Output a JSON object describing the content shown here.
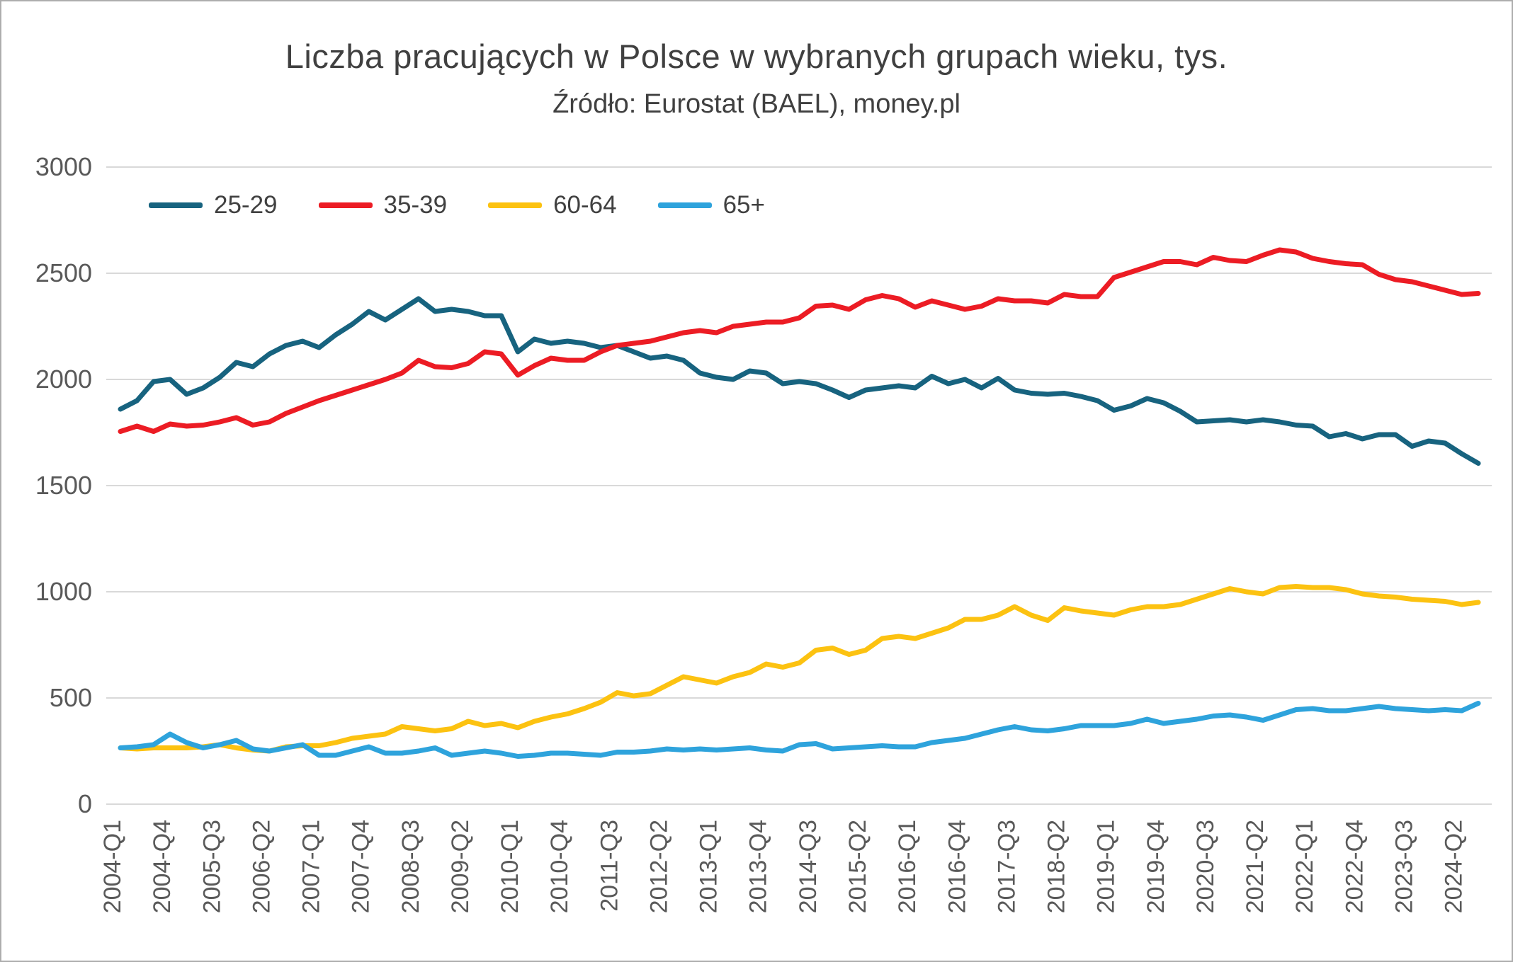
{
  "title": "Liczba pracujących w Polsce w wybranych grupach wieku, tys.",
  "subtitle": "Źródło: Eurostat (BAEL), money.pl",
  "chart_data": {
    "type": "line",
    "grid": "horizontal",
    "legend_position": "top-left-inside",
    "ylim": [
      0,
      3000
    ],
    "yticks": [
      0,
      500,
      1000,
      1500,
      2000,
      2500,
      3000
    ],
    "label_interval": 3,
    "categories": [
      "2004-Q1",
      "2004-Q2",
      "2004-Q3",
      "2004-Q4",
      "2005-Q1",
      "2005-Q2",
      "2005-Q3",
      "2005-Q4",
      "2006-Q1",
      "2006-Q2",
      "2006-Q3",
      "2006-Q4",
      "2007-Q1",
      "2007-Q2",
      "2007-Q3",
      "2007-Q4",
      "2008-Q1",
      "2008-Q2",
      "2008-Q3",
      "2008-Q4",
      "2009-Q1",
      "2009-Q2",
      "2009-Q3",
      "2009-Q4",
      "2010-Q1",
      "2010-Q2",
      "2010-Q3",
      "2010-Q4",
      "2011-Q1",
      "2011-Q2",
      "2011-Q3",
      "2011-Q4",
      "2012-Q1",
      "2012-Q2",
      "2012-Q3",
      "2012-Q4",
      "2013-Q1",
      "2013-Q2",
      "2013-Q3",
      "2013-Q4",
      "2014-Q1",
      "2014-Q2",
      "2014-Q3",
      "2014-Q4",
      "2015-Q1",
      "2015-Q2",
      "2015-Q3",
      "2015-Q4",
      "2016-Q1",
      "2016-Q2",
      "2016-Q3",
      "2016-Q4",
      "2017-Q1",
      "2017-Q2",
      "2017-Q3",
      "2017-Q4",
      "2018-Q1",
      "2018-Q2",
      "2018-Q3",
      "2018-Q4",
      "2019-Q1",
      "2019-Q2",
      "2019-Q3",
      "2019-Q4",
      "2020-Q1",
      "2020-Q2",
      "2020-Q3",
      "2020-Q4",
      "2021-Q1",
      "2021-Q2",
      "2021-Q3",
      "2021-Q4",
      "2022-Q1",
      "2022-Q2",
      "2022-Q3",
      "2022-Q4",
      "2023-Q1",
      "2023-Q2",
      "2023-Q3",
      "2023-Q4",
      "2024-Q1",
      "2024-Q2",
      "2024-Q3"
    ],
    "series": [
      {
        "name": "25-29",
        "color": "#17637f",
        "values": [
          1860,
          1900,
          1990,
          2000,
          1930,
          1960,
          2010,
          2080,
          2060,
          2120,
          2160,
          2180,
          2150,
          2210,
          2260,
          2320,
          2280,
          2330,
          2380,
          2320,
          2330,
          2320,
          2300,
          2300,
          2130,
          2190,
          2170,
          2180,
          2170,
          2150,
          2160,
          2130,
          2100,
          2110,
          2090,
          2030,
          2010,
          2000,
          2040,
          2030,
          1980,
          1990,
          1980,
          1950,
          1915,
          1950,
          1960,
          1970,
          1960,
          2015,
          1980,
          2000,
          1960,
          2005,
          1950,
          1935,
          1930,
          1935,
          1920,
          1900,
          1855,
          1875,
          1910,
          1890,
          1850,
          1800,
          1805,
          1810,
          1800,
          1810,
          1800,
          1785,
          1780,
          1730,
          1745,
          1720,
          1740,
          1740,
          1685,
          1710,
          1700,
          1650,
          1605
        ]
      },
      {
        "name": "35-39",
        "color": "#ec1c24",
        "values": [
          1755,
          1780,
          1755,
          1790,
          1780,
          1785,
          1800,
          1820,
          1785,
          1800,
          1840,
          1870,
          1900,
          1925,
          1950,
          1975,
          2000,
          2030,
          2090,
          2060,
          2055,
          2075,
          2130,
          2120,
          2020,
          2065,
          2100,
          2090,
          2090,
          2130,
          2160,
          2170,
          2180,
          2200,
          2220,
          2230,
          2220,
          2250,
          2260,
          2270,
          2270,
          2290,
          2345,
          2350,
          2330,
          2375,
          2395,
          2380,
          2340,
          2370,
          2350,
          2330,
          2345,
          2380,
          2370,
          2370,
          2360,
          2400,
          2390,
          2390,
          2480,
          2505,
          2530,
          2555,
          2555,
          2540,
          2575,
          2560,
          2555,
          2585,
          2610,
          2600,
          2570,
          2555,
          2545,
          2540,
          2495,
          2470,
          2460,
          2440,
          2420,
          2400,
          2405
        ]
      },
      {
        "name": "60-64",
        "color": "#fcc211",
        "values": [
          265,
          260,
          265,
          265,
          265,
          270,
          280,
          265,
          255,
          250,
          270,
          275,
          275,
          290,
          310,
          320,
          330,
          365,
          355,
          345,
          355,
          390,
          370,
          380,
          360,
          390,
          410,
          425,
          450,
          480,
          525,
          510,
          520,
          560,
          600,
          585,
          570,
          600,
          620,
          660,
          645,
          665,
          725,
          735,
          705,
          725,
          780,
          790,
          780,
          805,
          830,
          870,
          870,
          890,
          930,
          890,
          865,
          925,
          910,
          900,
          890,
          915,
          930,
          930,
          940,
          965,
          990,
          1015,
          1000,
          990,
          1020,
          1025,
          1020,
          1020,
          1010,
          990,
          980,
          975,
          965,
          960,
          955,
          940,
          950
        ]
      },
      {
        "name": "65+",
        "color": "#2ea3dc",
        "values": [
          265,
          270,
          280,
          330,
          290,
          265,
          280,
          300,
          260,
          250,
          265,
          280,
          230,
          230,
          250,
          270,
          240,
          240,
          250,
          265,
          230,
          240,
          250,
          240,
          225,
          230,
          240,
          240,
          235,
          230,
          245,
          245,
          250,
          260,
          255,
          260,
          255,
          260,
          265,
          255,
          250,
          280,
          285,
          260,
          265,
          270,
          275,
          270,
          270,
          290,
          300,
          310,
          330,
          350,
          365,
          350,
          345,
          355,
          370,
          370,
          370,
          380,
          400,
          380,
          390,
          400,
          415,
          420,
          410,
          395,
          420,
          445,
          450,
          440,
          440,
          450,
          460,
          450,
          445,
          440,
          445,
          440,
          475
        ]
      }
    ]
  }
}
